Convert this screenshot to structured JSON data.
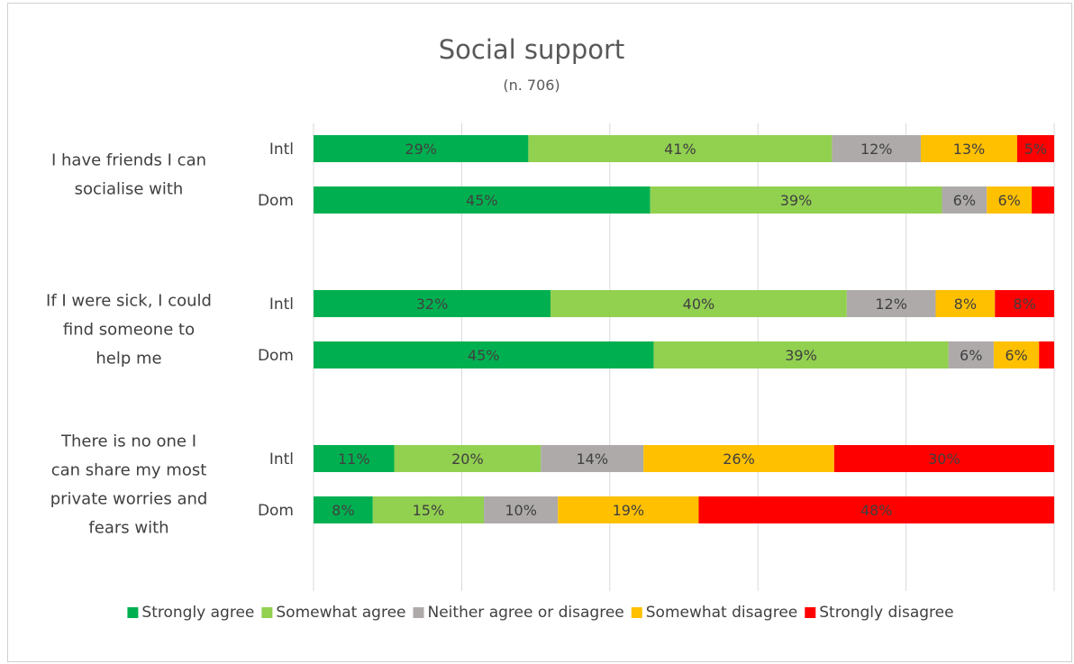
{
  "chart_data": {
    "type": "bar",
    "orientation": "horizontal",
    "stacked": true,
    "title": "Social support",
    "subtitle": "(n. 706)",
    "xlim": [
      0,
      100
    ],
    "grid": true,
    "legend_position": "bottom",
    "categories": [
      {
        "label_lines": [
          "I have friends I can",
          "socialise with"
        ],
        "groups": [
          {
            "name": "Intl",
            "values": [
              29,
              41,
              12,
              13,
              5
            ],
            "labels": [
              "29%",
              "41%",
              "12%",
              "13%",
              "5%"
            ]
          },
          {
            "name": "Dom",
            "values": [
              45,
              39,
              6,
              6,
              3
            ],
            "labels": [
              "45%",
              "39%",
              "6%",
              "6%",
              ""
            ]
          }
        ]
      },
      {
        "label_lines": [
          "If I were sick, I could",
          "find someone to",
          "help me"
        ],
        "groups": [
          {
            "name": "Intl",
            "values": [
              32,
              40,
              12,
              8,
              8
            ],
            "labels": [
              "32%",
              "40%",
              "12%",
              "8%",
              "8%"
            ]
          },
          {
            "name": "Dom",
            "values": [
              45,
              39,
              6,
              6,
              2
            ],
            "labels": [
              "45%",
              "39%",
              "6%",
              "6%",
              ""
            ]
          }
        ]
      },
      {
        "label_lines": [
          "There is no one I",
          "can share my most",
          "private worries and",
          "fears with"
        ],
        "groups": [
          {
            "name": "Intl",
            "values": [
              11,
              20,
              14,
              26,
              30
            ],
            "labels": [
              "11%",
              "20%",
              "14%",
              "26%",
              "30%"
            ]
          },
          {
            "name": "Dom",
            "values": [
              8,
              15,
              10,
              19,
              48
            ],
            "labels": [
              "8%",
              "15%",
              "10%",
              "19%",
              "48%"
            ]
          }
        ]
      }
    ],
    "series": [
      {
        "name": "Strongly agree",
        "color": "#00b050"
      },
      {
        "name": "Somewhat agree",
        "color": "#92d050"
      },
      {
        "name": "Neither agree or disagree",
        "color": "#aeaaaa"
      },
      {
        "name": "Somewhat disagree",
        "color": "#ffc000"
      },
      {
        "name": "Strongly disagree",
        "color": "#ff0000"
      }
    ]
  }
}
